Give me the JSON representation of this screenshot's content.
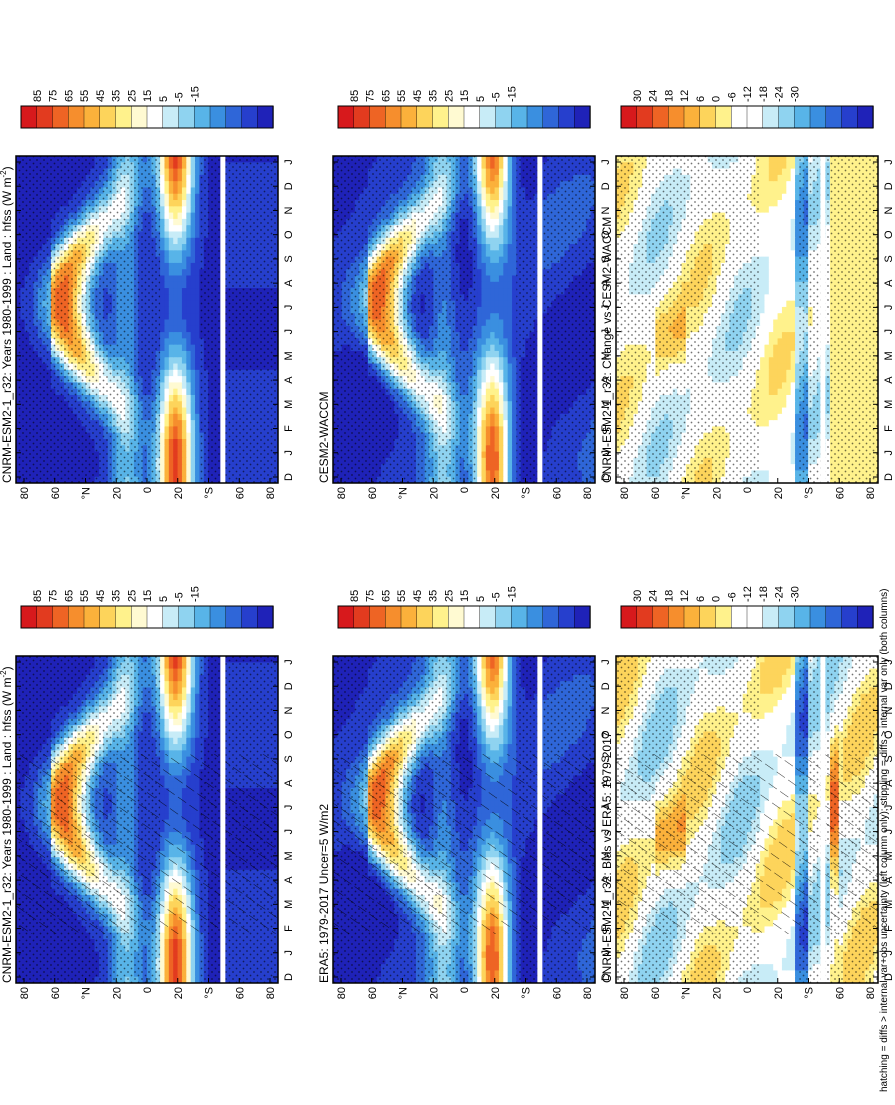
{
  "figure": {
    "footnote": "hatching = diffs > internal var+obs uncertainty (left column only); stippling = diffs > internal var only (both columns)"
  },
  "colorbars": {
    "mean": {
      "ticks": [
        "85",
        "75",
        "65",
        "55",
        "45",
        "35",
        "25",
        "15",
        "5",
        "-5",
        "-15"
      ],
      "colors": [
        "#d7191c",
        "#e23b1f",
        "#ee6424",
        "#f68e2d",
        "#fbb13b",
        "#fdd45b",
        "#fff28c",
        "#fffad2",
        "#ffffff",
        "#c8ecf7",
        "#8fd3f0",
        "#58b4e8",
        "#3a8fe0",
        "#2f66d8",
        "#263fcd",
        "#1f22b8"
      ]
    },
    "diff": {
      "ticks": [
        "30",
        "24",
        "18",
        "12",
        "6",
        "0",
        "-6",
        "-12",
        "-18",
        "-24",
        "-30"
      ],
      "colors": [
        "#d7191c",
        "#e23b1f",
        "#ee6424",
        "#f68e2d",
        "#fbb13b",
        "#fdd45b",
        "#fff28c",
        "#ffffff",
        "#ffffff",
        "#c8ecf7",
        "#8fd3f0",
        "#58b4e8",
        "#3a8fe0",
        "#2f66d8",
        "#263fcd",
        "#1f22b8"
      ]
    }
  },
  "axes": {
    "months": [
      "D",
      "J",
      "F",
      "M",
      "A",
      "M",
      "J",
      "J",
      "A",
      "S",
      "O",
      "N",
      "D",
      "J"
    ],
    "latitudes": [
      "80",
      "60",
      "°N",
      "20",
      "0",
      "20",
      "°S",
      "60",
      "80"
    ]
  },
  "chart_data": [
    {
      "type": "heatmap",
      "id": "left-top",
      "title": "CNRM-ESM2-1_r32: Years 1980-1999 : Land : hfss (W m",
      "title_sup": "-2",
      "title_close": ")",
      "variant": "mean",
      "hatching": true,
      "colorbar": "mean"
    },
    {
      "type": "heatmap",
      "id": "right-top",
      "title": "CNRM-ESM2-1_r32: Years 1980-1999 : Land : hfss (W m",
      "title_sup": "-2",
      "title_close": ")",
      "variant": "mean",
      "hatching": false,
      "colorbar": "mean"
    },
    {
      "type": "heatmap",
      "id": "left-middle",
      "title": "ERA5: 1979-2017 Uncer=5 W/m2",
      "variant": "mean2",
      "hatching": true,
      "colorbar": "mean"
    },
    {
      "type": "heatmap",
      "id": "right-middle",
      "title": "CESM2-WACCM",
      "variant": "mean2",
      "hatching": false,
      "colorbar": "mean"
    },
    {
      "type": "heatmap",
      "id": "left-bottom",
      "title": "CNRM-ESM2-1_r32: Bias vs ERA5: 1979-2017",
      "variant": "diff",
      "hatching": true,
      "colorbar": "diff"
    },
    {
      "type": "heatmap",
      "id": "right-bottom",
      "title": "CNRM-ESM2-1_r32: Change vs CESM2-WACCM",
      "variant": "diff2",
      "hatching": false,
      "colorbar": "diff"
    }
  ]
}
